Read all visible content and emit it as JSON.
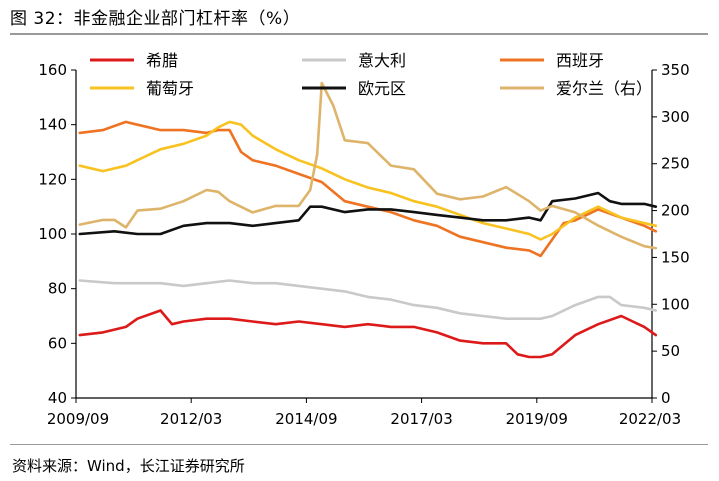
{
  "figure": {
    "title": "图 32：非金融企业部门杠杆率（%）",
    "source": "资料来源：Wind，长江证券研究所"
  },
  "chart_data": {
    "type": "line",
    "x_labels": [
      "2009/09",
      "2012/03",
      "2014/09",
      "2017/03",
      "2019/09",
      "2022/03"
    ],
    "x_range": [
      "2009/09",
      "2022/03"
    ],
    "y_left": {
      "ylim": [
        40,
        160
      ],
      "ticks": [
        "40",
        "60",
        "80",
        "100",
        "120",
        "140",
        "160"
      ]
    },
    "y_right": {
      "ylim": [
        0,
        350
      ],
      "ticks": [
        "0",
        "50",
        "100",
        "150",
        "200",
        "250",
        "300",
        "350"
      ]
    },
    "legend_placement": "top",
    "series": [
      {
        "name": "希腊",
        "color": "#dd1a1a",
        "axis": "left",
        "t": [
          2009.75,
          2010.25,
          2010.75,
          2011.0,
          2011.5,
          2011.75,
          2012.0,
          2012.5,
          2013.0,
          2013.5,
          2014.0,
          2014.5,
          2015.0,
          2015.5,
          2016.0,
          2016.5,
          2017.0,
          2017.5,
          2018.0,
          2018.5,
          2019.0,
          2019.25,
          2019.5,
          2019.75,
          2020.0,
          2020.5,
          2021.0,
          2021.5,
          2021.75,
          2022.0,
          2022.25
        ],
        "v": [
          63,
          64,
          66,
          69,
          72,
          67,
          68,
          69,
          69,
          68,
          67,
          68,
          67,
          66,
          67,
          66,
          66,
          64,
          61,
          60,
          60,
          56,
          55,
          55,
          56,
          63,
          67,
          70,
          68,
          66,
          63
        ]
      },
      {
        "name": "意大利",
        "color": "#c9c9c9",
        "axis": "left",
        "t": [
          2009.75,
          2010.5,
          2011.0,
          2011.5,
          2012.0,
          2012.5,
          2013.0,
          2013.5,
          2014.0,
          2014.5,
          2015.0,
          2015.5,
          2016.0,
          2016.5,
          2017.0,
          2017.5,
          2018.0,
          2018.5,
          2019.0,
          2019.5,
          2019.75,
          2020.0,
          2020.5,
          2021.0,
          2021.25,
          2021.5,
          2022.0,
          2022.25
        ],
        "v": [
          83,
          82,
          82,
          82,
          81,
          82,
          83,
          82,
          82,
          81,
          80,
          79,
          77,
          76,
          74,
          73,
          71,
          70,
          69,
          69,
          69,
          70,
          74,
          77,
          77,
          74,
          73,
          72
        ]
      },
      {
        "name": "西班牙",
        "color": "#ee7322",
        "axis": "left",
        "t": [
          2009.75,
          2010.25,
          2010.75,
          2011.0,
          2011.5,
          2012.0,
          2012.5,
          2012.75,
          2013.0,
          2013.25,
          2013.5,
          2014.0,
          2014.5,
          2015.0,
          2015.5,
          2016.0,
          2016.5,
          2017.0,
          2017.5,
          2018.0,
          2018.5,
          2019.0,
          2019.5,
          2019.75,
          2020.0,
          2020.25,
          2020.5,
          2021.0,
          2021.5,
          2022.0,
          2022.25
        ],
        "v": [
          137,
          138,
          141,
          140,
          138,
          138,
          137,
          138,
          138,
          130,
          127,
          125,
          122,
          119,
          112,
          110,
          108,
          105,
          103,
          99,
          97,
          95,
          94,
          92,
          98,
          104,
          105,
          109,
          106,
          103,
          101
        ]
      },
      {
        "name": "葡萄牙",
        "color": "#f8c220",
        "axis": "left",
        "t": [
          2009.75,
          2010.25,
          2010.75,
          2011.0,
          2011.5,
          2012.0,
          2012.5,
          2012.75,
          2013.0,
          2013.25,
          2013.5,
          2014.0,
          2014.5,
          2015.0,
          2015.5,
          2016.0,
          2016.5,
          2017.0,
          2017.5,
          2018.0,
          2018.5,
          2019.0,
          2019.5,
          2019.75,
          2020.0,
          2020.5,
          2021.0,
          2021.5,
          2022.0,
          2022.25
        ],
        "v": [
          125,
          123,
          125,
          127,
          131,
          133,
          136,
          139,
          141,
          140,
          136,
          131,
          127,
          124,
          120,
          117,
          115,
          112,
          110,
          107,
          104,
          102,
          100,
          98,
          100,
          106,
          110,
          106,
          104,
          103
        ]
      },
      {
        "name": "欧元区",
        "color": "#111111",
        "axis": "left",
        "t": [
          2009.75,
          2010.5,
          2011.0,
          2011.5,
          2012.0,
          2012.5,
          2013.0,
          2013.5,
          2014.0,
          2014.5,
          2014.75,
          2015.0,
          2015.5,
          2016.0,
          2016.5,
          2017.0,
          2017.5,
          2018.0,
          2018.5,
          2019.0,
          2019.5,
          2019.75,
          2020.0,
          2020.5,
          2021.0,
          2021.25,
          2021.5,
          2022.0,
          2022.25
        ],
        "v": [
          100,
          101,
          100,
          100,
          103,
          104,
          104,
          103,
          104,
          105,
          110,
          110,
          108,
          109,
          109,
          108,
          107,
          106,
          105,
          105,
          106,
          105,
          112,
          113,
          115,
          112,
          111,
          111,
          110
        ]
      },
      {
        "name": "爱尔兰（右）",
        "color": "#ddb46a",
        "axis": "right",
        "t": [
          2009.75,
          2010.25,
          2010.5,
          2010.75,
          2011.0,
          2011.5,
          2012.0,
          2012.5,
          2012.75,
          2013.0,
          2013.5,
          2014.0,
          2014.5,
          2014.75,
          2014.9,
          2015.0,
          2015.25,
          2015.5,
          2016.0,
          2016.5,
          2017.0,
          2017.5,
          2018.0,
          2018.5,
          2019.0,
          2019.5,
          2019.75,
          2020.0,
          2020.5,
          2021.0,
          2021.5,
          2022.0,
          2022.25
        ],
        "v": [
          185,
          190,
          190,
          182,
          200,
          202,
          210,
          222,
          220,
          210,
          198,
          205,
          205,
          222,
          260,
          336,
          312,
          275,
          272,
          248,
          244,
          218,
          212,
          215,
          225,
          210,
          200,
          205,
          198,
          184,
          172,
          162,
          160
        ]
      }
    ]
  }
}
